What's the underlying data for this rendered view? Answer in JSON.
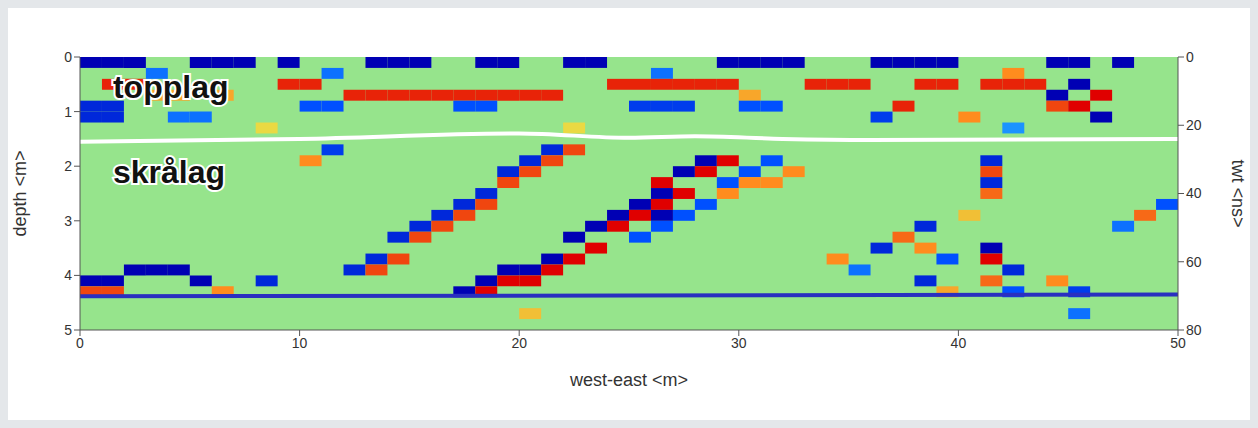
{
  "chart_data": {
    "type": "heatmap",
    "xlabel": "west-east <m>",
    "ylabel": "depth <m>",
    "y2label": "twt <ns>",
    "xlim": [
      0,
      50
    ],
    "xticks": [
      0,
      10,
      20,
      30,
      40,
      50
    ],
    "ylim": [
      0,
      5
    ],
    "yticks": [
      0,
      1,
      2,
      3,
      4,
      5
    ],
    "y2lim": [
      0,
      80
    ],
    "y2ticks": [
      0,
      20,
      40,
      60,
      80
    ],
    "grid": false,
    "legend": false,
    "clim": [
      -1,
      1
    ],
    "background": 0,
    "cell_size": [
      1,
      0.2
    ],
    "annotations": [
      {
        "text": "topplag",
        "x": 1.5,
        "y": 0.75
      },
      {
        "text": "skrålag",
        "x": 1.5,
        "y": 2.3
      }
    ],
    "boundaries": [
      {
        "color": "#ffffff",
        "points": [
          [
            0,
            1.55
          ],
          [
            10,
            1.5
          ],
          [
            20,
            1.4
          ],
          [
            25,
            1.48
          ],
          [
            28,
            1.45
          ],
          [
            32,
            1.5
          ],
          [
            36,
            1.52
          ],
          [
            50,
            1.5
          ]
        ]
      },
      {
        "color": "#2a2fc0",
        "points": [
          [
            0,
            4.38
          ],
          [
            25,
            4.37
          ],
          [
            50,
            4.35
          ]
        ]
      }
    ],
    "cells": [
      [
        0,
        0,
        -1
      ],
      [
        1,
        0,
        -1
      ],
      [
        2,
        0,
        -1
      ],
      [
        5,
        0,
        -1
      ],
      [
        6,
        0,
        -1
      ],
      [
        7,
        0,
        -1
      ],
      [
        9,
        0,
        -1
      ],
      [
        13,
        0,
        -1
      ],
      [
        14,
        0,
        -1
      ],
      [
        15,
        0,
        -1
      ],
      [
        18,
        0,
        -1
      ],
      [
        19,
        0,
        -1
      ],
      [
        22,
        0,
        -1
      ],
      [
        23,
        0,
        -1
      ],
      [
        29,
        0,
        -1
      ],
      [
        30,
        0,
        -1
      ],
      [
        31,
        0,
        -1
      ],
      [
        32,
        0,
        -1
      ],
      [
        36,
        0,
        -1
      ],
      [
        37,
        0,
        -1
      ],
      [
        38,
        0,
        -1
      ],
      [
        39,
        0,
        -1
      ],
      [
        44,
        0,
        -1
      ],
      [
        45,
        0,
        -1
      ],
      [
        47,
        0,
        -1
      ],
      [
        3,
        0.2,
        -0.5
      ],
      [
        11,
        0.2,
        -0.5
      ],
      [
        26,
        0.2,
        -0.5
      ],
      [
        42,
        0.2,
        0.6
      ],
      [
        1,
        0.4,
        0.9
      ],
      [
        2,
        0.4,
        0.9
      ],
      [
        9,
        0.4,
        0.9
      ],
      [
        10,
        0.4,
        0.9
      ],
      [
        24,
        0.4,
        0.9
      ],
      [
        25,
        0.4,
        0.9
      ],
      [
        26,
        0.4,
        0.9
      ],
      [
        27,
        0.4,
        0.9
      ],
      [
        28,
        0.4,
        0.9
      ],
      [
        29,
        0.4,
        0.9
      ],
      [
        33,
        0.4,
        0.9
      ],
      [
        34,
        0.4,
        0.9
      ],
      [
        35,
        0.4,
        0.9
      ],
      [
        38,
        0.4,
        0.9
      ],
      [
        39,
        0.4,
        0.9
      ],
      [
        41,
        0.4,
        0.9
      ],
      [
        42,
        0.4,
        0.9
      ],
      [
        43,
        0.4,
        0.9
      ],
      [
        45,
        0.4,
        -1
      ],
      [
        3,
        0.6,
        0.5
      ],
      [
        4,
        0.6,
        0.5
      ],
      [
        6,
        0.6,
        0.5
      ],
      [
        12,
        0.6,
        0.9
      ],
      [
        13,
        0.6,
        0.9
      ],
      [
        14,
        0.6,
        0.9
      ],
      [
        15,
        0.6,
        0.9
      ],
      [
        16,
        0.6,
        0.9
      ],
      [
        17,
        0.6,
        0.9
      ],
      [
        18,
        0.6,
        0.9
      ],
      [
        19,
        0.6,
        0.9
      ],
      [
        20,
        0.6,
        0.9
      ],
      [
        21,
        0.6,
        0.9
      ],
      [
        30,
        0.6,
        0.5
      ],
      [
        44,
        0.6,
        -1
      ],
      [
        46,
        0.6,
        1
      ],
      [
        0,
        0.8,
        -0.8
      ],
      [
        1,
        0.8,
        -0.8
      ],
      [
        10,
        0.8,
        -0.6
      ],
      [
        11,
        0.8,
        -0.6
      ],
      [
        17,
        0.8,
        -0.6
      ],
      [
        18,
        0.8,
        -0.6
      ],
      [
        25,
        0.8,
        -0.7
      ],
      [
        26,
        0.8,
        -0.7
      ],
      [
        27,
        0.8,
        -0.7
      ],
      [
        30,
        0.8,
        -0.6
      ],
      [
        31,
        0.8,
        -0.6
      ],
      [
        37,
        0.8,
        0.9
      ],
      [
        44,
        0.8,
        0.8
      ],
      [
        45,
        0.8,
        1
      ],
      [
        0,
        1,
        -0.8
      ],
      [
        1,
        1,
        -0.8
      ],
      [
        4,
        1,
        -0.5
      ],
      [
        5,
        1,
        -0.5
      ],
      [
        36,
        1,
        -0.7
      ],
      [
        46,
        1,
        -1
      ],
      [
        40,
        1,
        0.6
      ],
      [
        8,
        1.2,
        0.3
      ],
      [
        22,
        1.2,
        0.3
      ],
      [
        42,
        1.2,
        -0.4
      ],
      [
        11,
        1.6,
        -0.7
      ],
      [
        10,
        1.8,
        0.6
      ],
      [
        21,
        1.6,
        -0.8
      ],
      [
        20,
        1.8,
        -0.8
      ],
      [
        19,
        2,
        -0.8
      ],
      [
        18,
        2.4,
        -0.8
      ],
      [
        17,
        2.6,
        -0.8
      ],
      [
        16,
        2.8,
        -0.8
      ],
      [
        15,
        3,
        -0.8
      ],
      [
        14,
        3.2,
        -0.8
      ],
      [
        13,
        3.6,
        -0.8
      ],
      [
        12,
        3.8,
        -0.8
      ],
      [
        22,
        1.6,
        0.8
      ],
      [
        21,
        1.8,
        0.8
      ],
      [
        20,
        2,
        0.8
      ],
      [
        19,
        2.2,
        0.8
      ],
      [
        18,
        2.6,
        0.8
      ],
      [
        17,
        2.8,
        0.8
      ],
      [
        16,
        3,
        0.8
      ],
      [
        15,
        3.2,
        0.8
      ],
      [
        14,
        3.6,
        0.8
      ],
      [
        13,
        3.8,
        0.8
      ],
      [
        28,
        1.8,
        -1
      ],
      [
        27,
        2,
        -1
      ],
      [
        26,
        2.4,
        -1
      ],
      [
        25,
        2.6,
        -1
      ],
      [
        24,
        2.8,
        -1
      ],
      [
        23,
        3,
        -1
      ],
      [
        22,
        3.2,
        -1
      ],
      [
        21,
        3.6,
        -1
      ],
      [
        20,
        3.8,
        -1
      ],
      [
        19,
        3.8,
        -1
      ],
      [
        18,
        4,
        -1
      ],
      [
        17,
        4.2,
        -1
      ],
      [
        29,
        1.8,
        1
      ],
      [
        28,
        2,
        1
      ],
      [
        27,
        2.4,
        1
      ],
      [
        26,
        2.6,
        1
      ],
      [
        25,
        2.8,
        1
      ],
      [
        24,
        3,
        1
      ],
      [
        23,
        3.4,
        1
      ],
      [
        22,
        3.6,
        1
      ],
      [
        21,
        3.8,
        1
      ],
      [
        20,
        4,
        1
      ],
      [
        19,
        4,
        1
      ],
      [
        18,
        4.2,
        1
      ],
      [
        31,
        1.8,
        -0.6
      ],
      [
        30,
        2,
        -0.6
      ],
      [
        29,
        2.2,
        -0.6
      ],
      [
        28,
        2.6,
        -0.6
      ],
      [
        27,
        2.8,
        -0.6
      ],
      [
        26,
        3,
        -0.6
      ],
      [
        25,
        3.2,
        -0.6
      ],
      [
        32,
        2,
        0.6
      ],
      [
        31,
        2.2,
        0.6
      ],
      [
        30,
        2.2,
        0.6
      ],
      [
        29,
        2.4,
        0.6
      ],
      [
        26,
        2.2,
        1
      ],
      [
        26,
        2.8,
        -1
      ],
      [
        0,
        4,
        -1
      ],
      [
        1,
        4,
        -1
      ],
      [
        2,
        3.8,
        -1
      ],
      [
        3,
        3.8,
        -1
      ],
      [
        4,
        3.8,
        -1
      ],
      [
        5,
        4,
        -1
      ],
      [
        8,
        4,
        -0.8
      ],
      [
        0,
        4.2,
        0.8
      ],
      [
        1,
        4.2,
        0.8
      ],
      [
        6,
        4.2,
        0.6
      ],
      [
        36,
        3.4,
        -0.8
      ],
      [
        37,
        3.2,
        0.7
      ],
      [
        38,
        3,
        -0.8
      ],
      [
        38,
        3.4,
        0.6
      ],
      [
        39,
        3.6,
        -0.6
      ],
      [
        34,
        3.6,
        0.6
      ],
      [
        35,
        3.8,
        -0.5
      ],
      [
        41,
        1.8,
        -0.8
      ],
      [
        41,
        2,
        0.8
      ],
      [
        41,
        2.2,
        -0.8
      ],
      [
        41,
        2.4,
        0.7
      ],
      [
        41,
        3.4,
        -1
      ],
      [
        41,
        3.6,
        1
      ],
      [
        42,
        3.8,
        -0.8
      ],
      [
        41,
        4,
        0.7
      ],
      [
        42,
        4.2,
        -0.6
      ],
      [
        48,
        2.8,
        0.7
      ],
      [
        49,
        2.6,
        -0.6
      ],
      [
        47,
        3,
        -0.5
      ],
      [
        45,
        4.2,
        -0.7
      ],
      [
        44,
        4,
        0.6
      ],
      [
        38,
        4,
        -0.8
      ],
      [
        39,
        4.2,
        0.5
      ],
      [
        40,
        2.8,
        0.4
      ],
      [
        45,
        4.6,
        -0.5
      ],
      [
        20,
        4.6,
        0.4
      ]
    ]
  }
}
